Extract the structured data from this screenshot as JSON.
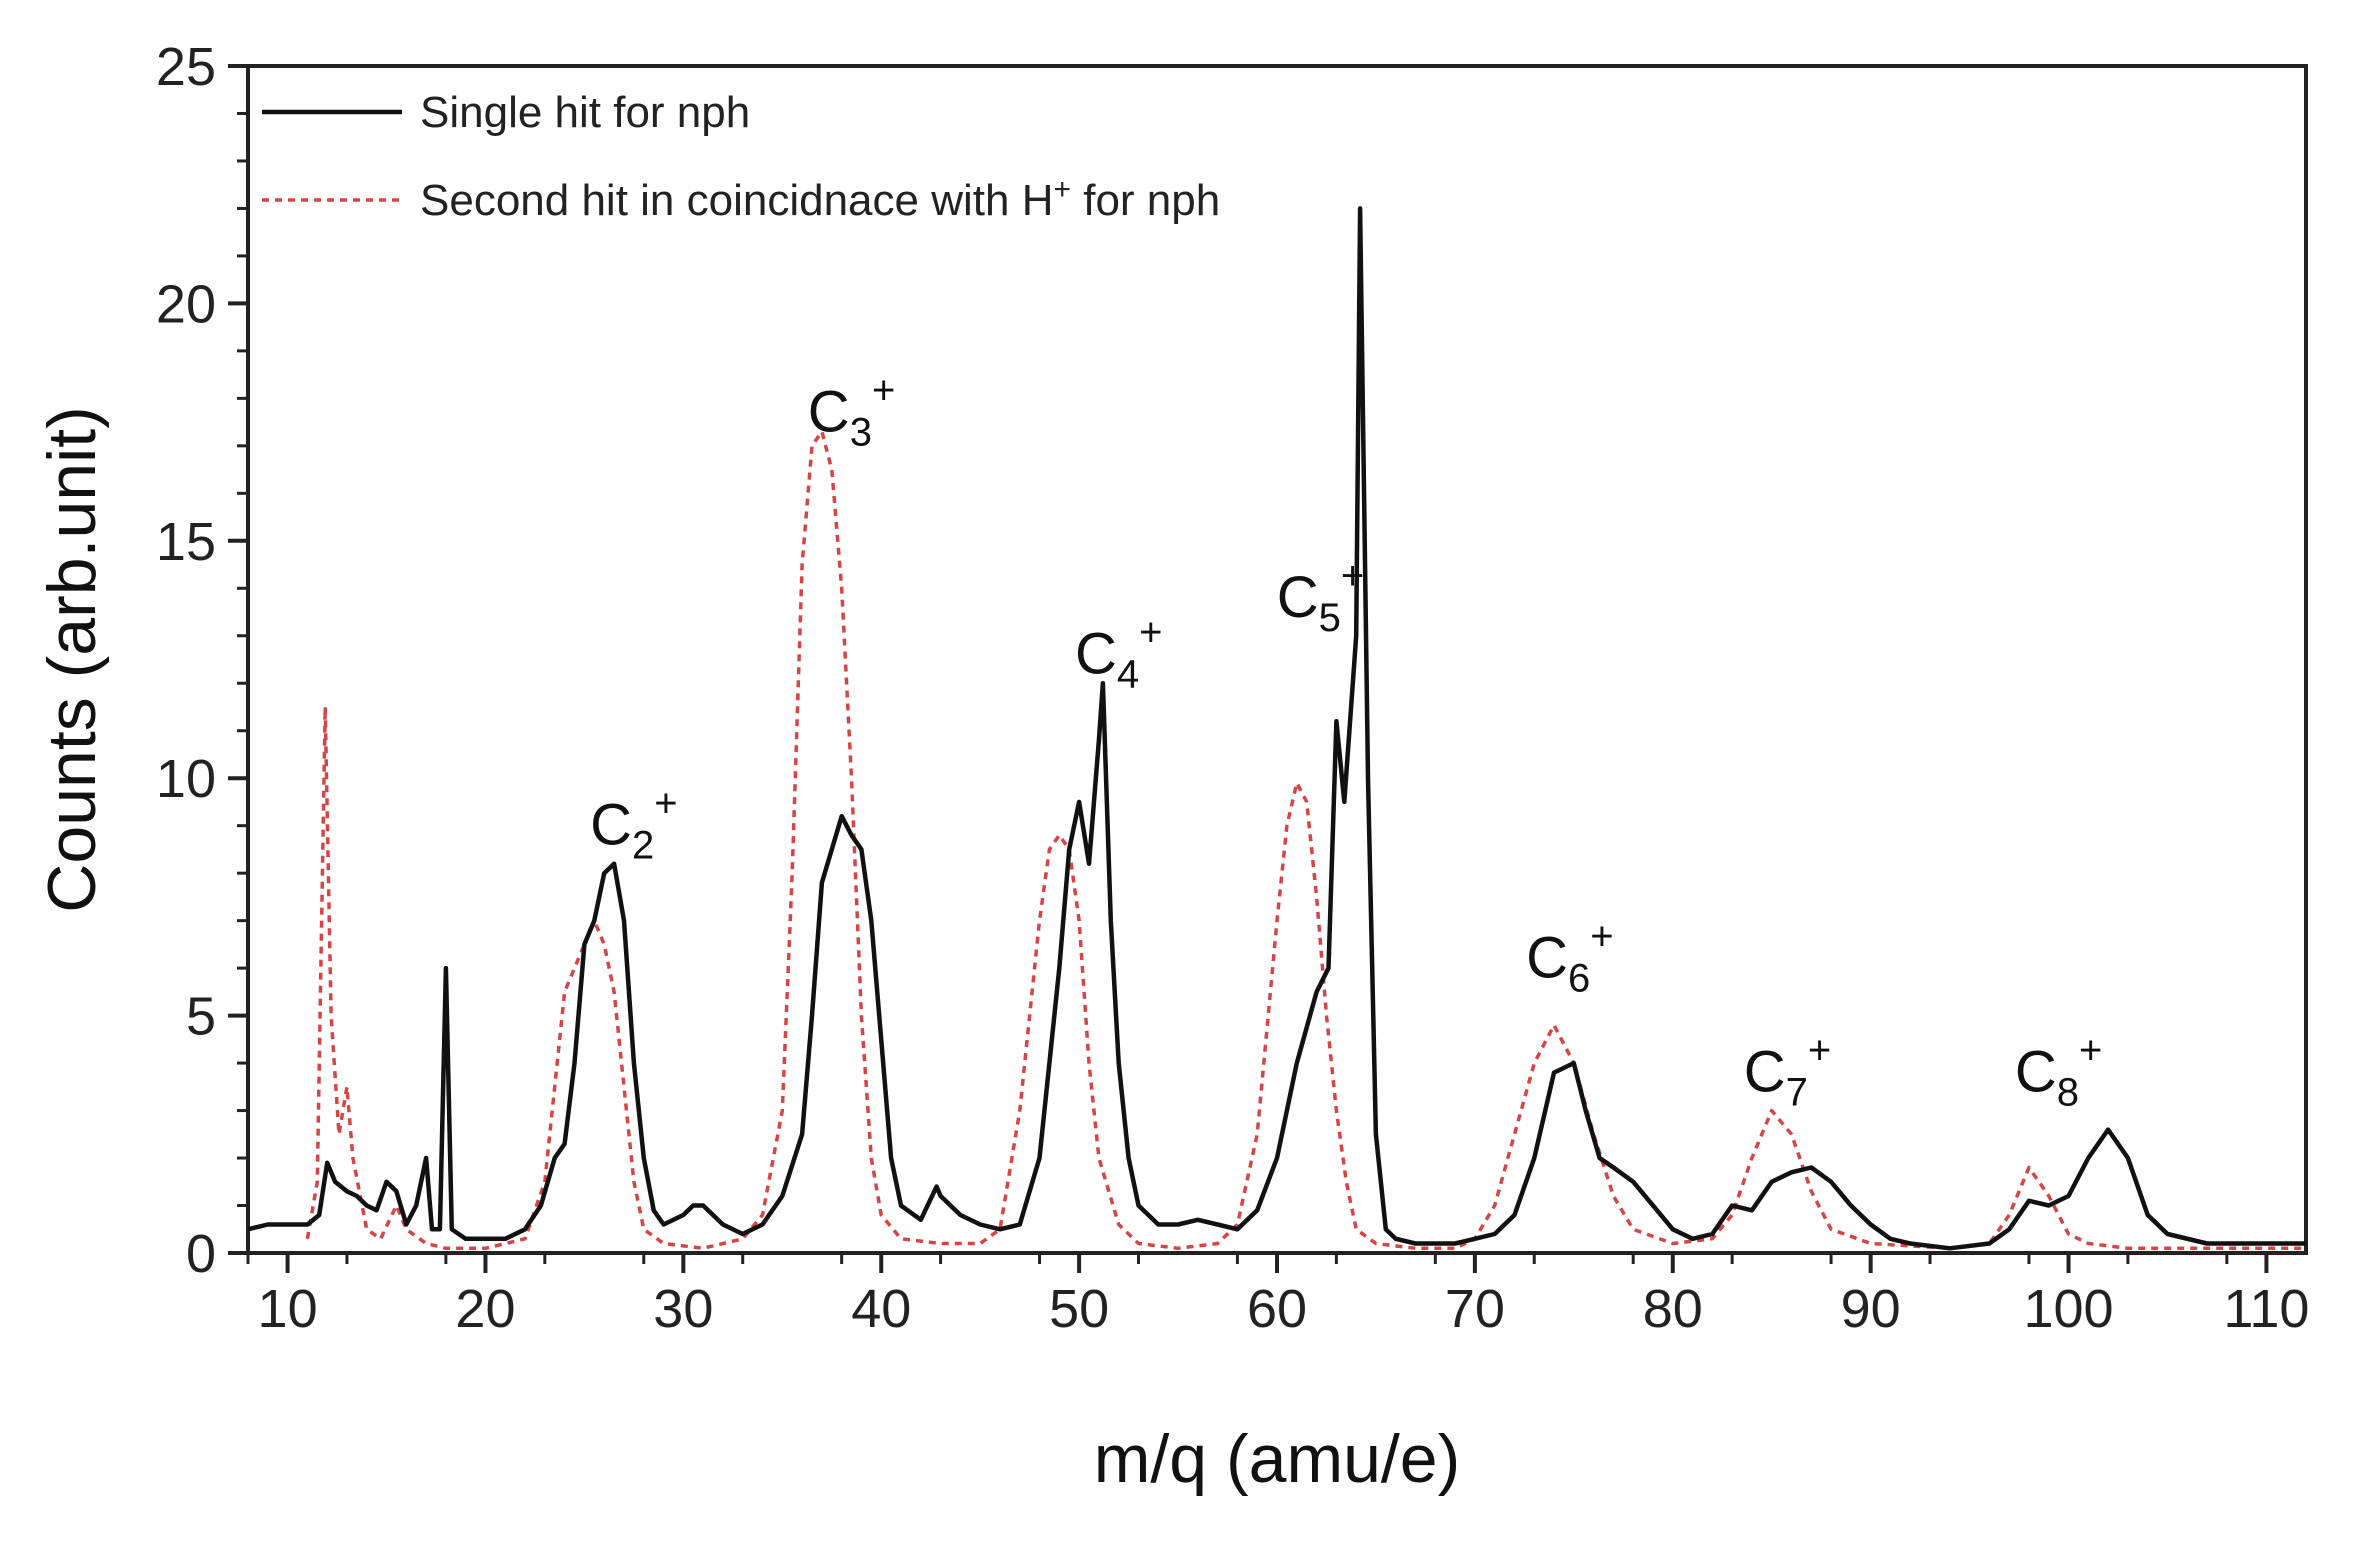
{
  "chart_data": {
    "type": "line",
    "title": "",
    "xlabel": "m/q (amu/e)",
    "ylabel": "Counts (arb.unit)",
    "xlim": [
      8,
      112
    ],
    "ylim": [
      0,
      25
    ],
    "x_ticks": [
      10,
      20,
      30,
      40,
      50,
      60,
      70,
      80,
      90,
      100,
      110
    ],
    "y_ticks": [
      0,
      5,
      10,
      15,
      20,
      25
    ],
    "grid": false,
    "legend_placement": "top-left",
    "series": [
      {
        "name": "Single hit for nph",
        "color": "#111111",
        "style": "solid",
        "points": [
          [
            8,
            0.5
          ],
          [
            9,
            0.6
          ],
          [
            10,
            0.6
          ],
          [
            11,
            0.6
          ],
          [
            11.6,
            0.8
          ],
          [
            12,
            1.9
          ],
          [
            12.4,
            1.5
          ],
          [
            13,
            1.3
          ],
          [
            13.5,
            1.2
          ],
          [
            14,
            1.0
          ],
          [
            14.5,
            0.9
          ],
          [
            15,
            1.5
          ],
          [
            15.5,
            1.3
          ],
          [
            16,
            0.6
          ],
          [
            16.5,
            1.0
          ],
          [
            17,
            2.0
          ],
          [
            17.3,
            0.5
          ],
          [
            17.7,
            0.5
          ],
          [
            18,
            6.0
          ],
          [
            18.3,
            0.5
          ],
          [
            19,
            0.3
          ],
          [
            20,
            0.3
          ],
          [
            21,
            0.3
          ],
          [
            22,
            0.5
          ],
          [
            22.8,
            1.0
          ],
          [
            23.5,
            2.0
          ],
          [
            24,
            2.3
          ],
          [
            24.5,
            4.0
          ],
          [
            25,
            6.5
          ],
          [
            25.5,
            7.0
          ],
          [
            26,
            8.0
          ],
          [
            26.5,
            8.2
          ],
          [
            27,
            7.0
          ],
          [
            27.5,
            4.0
          ],
          [
            28,
            2.0
          ],
          [
            28.5,
            0.9
          ],
          [
            29,
            0.6
          ],
          [
            30,
            0.8
          ],
          [
            30.5,
            1.0
          ],
          [
            31,
            1.0
          ],
          [
            32,
            0.6
          ],
          [
            33,
            0.4
          ],
          [
            34,
            0.6
          ],
          [
            35,
            1.2
          ],
          [
            36,
            2.5
          ],
          [
            36.5,
            5.0
          ],
          [
            37,
            7.8
          ],
          [
            37.5,
            8.5
          ],
          [
            38,
            9.2
          ],
          [
            38.5,
            8.8
          ],
          [
            39,
            8.5
          ],
          [
            39.5,
            7.0
          ],
          [
            40,
            4.5
          ],
          [
            40.5,
            2.0
          ],
          [
            41,
            1.0
          ],
          [
            42,
            0.7
          ],
          [
            42.8,
            1.4
          ],
          [
            43,
            1.2
          ],
          [
            44,
            0.8
          ],
          [
            45,
            0.6
          ],
          [
            46,
            0.5
          ],
          [
            47,
            0.6
          ],
          [
            48,
            2.0
          ],
          [
            49,
            6.0
          ],
          [
            49.5,
            8.5
          ],
          [
            50,
            9.5
          ],
          [
            50.5,
            8.2
          ],
          [
            51,
            10.8
          ],
          [
            51.2,
            12.0
          ],
          [
            51.6,
            7.0
          ],
          [
            52,
            4.0
          ],
          [
            52.5,
            2.0
          ],
          [
            53,
            1.0
          ],
          [
            54,
            0.6
          ],
          [
            55,
            0.6
          ],
          [
            56,
            0.7
          ],
          [
            57,
            0.6
          ],
          [
            58,
            0.5
          ],
          [
            59,
            0.9
          ],
          [
            60,
            2.0
          ],
          [
            61,
            4.0
          ],
          [
            62,
            5.5
          ],
          [
            62.6,
            6.0
          ],
          [
            63,
            11.2
          ],
          [
            63.4,
            9.5
          ],
          [
            64,
            13.0
          ],
          [
            64.2,
            22.0
          ],
          [
            64.6,
            10.0
          ],
          [
            65,
            2.5
          ],
          [
            65.5,
            0.5
          ],
          [
            66,
            0.3
          ],
          [
            67,
            0.2
          ],
          [
            68,
            0.2
          ],
          [
            69,
            0.2
          ],
          [
            70,
            0.3
          ],
          [
            71,
            0.4
          ],
          [
            72,
            0.8
          ],
          [
            73,
            2.0
          ],
          [
            74,
            3.8
          ],
          [
            75,
            4.0
          ],
          [
            75.6,
            3.0
          ],
          [
            76.3,
            2.0
          ],
          [
            77,
            1.8
          ],
          [
            78,
            1.5
          ],
          [
            79,
            1.0
          ],
          [
            80,
            0.5
          ],
          [
            81,
            0.3
          ],
          [
            82,
            0.4
          ],
          [
            83,
            1.0
          ],
          [
            84,
            0.9
          ],
          [
            85,
            1.5
          ],
          [
            86,
            1.7
          ],
          [
            87,
            1.8
          ],
          [
            88,
            1.5
          ],
          [
            89,
            1.0
          ],
          [
            90,
            0.6
          ],
          [
            91,
            0.3
          ],
          [
            92,
            0.2
          ],
          [
            94,
            0.1
          ],
          [
            96,
            0.2
          ],
          [
            97,
            0.5
          ],
          [
            98,
            1.1
          ],
          [
            99,
            1.0
          ],
          [
            100,
            1.2
          ],
          [
            101,
            2.0
          ],
          [
            102,
            2.6
          ],
          [
            103,
            2.0
          ],
          [
            104,
            0.8
          ],
          [
            105,
            0.4
          ],
          [
            107,
            0.2
          ],
          [
            109,
            0.2
          ],
          [
            112,
            0.2
          ]
        ]
      },
      {
        "name": "Second hit in coincidnace with H+ for nph",
        "color": "#d64545",
        "style": "dotted",
        "points": [
          [
            11,
            0.3
          ],
          [
            11.5,
            1.5
          ],
          [
            11.9,
            11.5
          ],
          [
            12.2,
            5.0
          ],
          [
            12.6,
            2.5
          ],
          [
            13,
            3.5
          ],
          [
            13.3,
            2.0
          ],
          [
            14,
            0.5
          ],
          [
            14.7,
            0.3
          ],
          [
            15.5,
            1.0
          ],
          [
            16,
            0.5
          ],
          [
            17,
            0.2
          ],
          [
            18,
            0.1
          ],
          [
            20,
            0.1
          ],
          [
            22,
            0.3
          ],
          [
            23,
            1.5
          ],
          [
            24,
            5.5
          ],
          [
            24.5,
            6.0
          ],
          [
            25,
            6.5
          ],
          [
            25.5,
            7.0
          ],
          [
            26,
            6.5
          ],
          [
            26.5,
            5.5
          ],
          [
            27,
            3.5
          ],
          [
            27.5,
            1.5
          ],
          [
            28,
            0.5
          ],
          [
            29,
            0.2
          ],
          [
            31,
            0.1
          ],
          [
            33,
            0.3
          ],
          [
            34,
            0.8
          ],
          [
            35,
            3.0
          ],
          [
            35.5,
            8.0
          ],
          [
            36,
            14.5
          ],
          [
            36.5,
            17.0
          ],
          [
            37,
            17.3
          ],
          [
            37.5,
            16.5
          ],
          [
            38,
            14.0
          ],
          [
            38.5,
            10.0
          ],
          [
            39,
            5.0
          ],
          [
            39.5,
            2.0
          ],
          [
            40,
            0.8
          ],
          [
            41,
            0.3
          ],
          [
            43,
            0.2
          ],
          [
            45,
            0.2
          ],
          [
            46,
            0.5
          ],
          [
            47,
            3.0
          ],
          [
            48,
            7.0
          ],
          [
            48.5,
            8.5
          ],
          [
            49,
            8.8
          ],
          [
            49.5,
            8.5
          ],
          [
            50,
            7.0
          ],
          [
            50.5,
            4.0
          ],
          [
            51,
            2.0
          ],
          [
            52,
            0.6
          ],
          [
            53,
            0.2
          ],
          [
            55,
            0.1
          ],
          [
            57,
            0.2
          ],
          [
            58,
            0.6
          ],
          [
            59,
            2.5
          ],
          [
            60,
            7.0
          ],
          [
            60.5,
            9.0
          ],
          [
            61,
            9.9
          ],
          [
            61.5,
            9.5
          ],
          [
            62,
            7.5
          ],
          [
            62.5,
            5.0
          ],
          [
            63,
            3.0
          ],
          [
            63.5,
            1.5
          ],
          [
            64,
            0.5
          ],
          [
            65,
            0.2
          ],
          [
            67,
            0.1
          ],
          [
            69,
            0.1
          ],
          [
            70,
            0.3
          ],
          [
            71,
            1.0
          ],
          [
            72,
            2.5
          ],
          [
            73,
            4.0
          ],
          [
            74,
            4.8
          ],
          [
            75,
            4.0
          ],
          [
            76,
            2.5
          ],
          [
            77,
            1.2
          ],
          [
            78,
            0.5
          ],
          [
            80,
            0.2
          ],
          [
            82,
            0.3
          ],
          [
            83,
            0.8
          ],
          [
            84,
            2.0
          ],
          [
            85,
            3.0
          ],
          [
            86,
            2.5
          ],
          [
            87,
            1.3
          ],
          [
            88,
            0.5
          ],
          [
            90,
            0.2
          ],
          [
            94,
            0.1
          ],
          [
            96,
            0.2
          ],
          [
            97,
            0.8
          ],
          [
            98,
            1.8
          ],
          [
            99,
            1.2
          ],
          [
            100,
            0.4
          ],
          [
            101,
            0.2
          ],
          [
            103,
            0.1
          ],
          [
            112,
            0.1
          ]
        ]
      }
    ],
    "annotations": [
      {
        "base": "C",
        "sub": "2",
        "sup": "+",
        "x": 27.5,
        "y": 8.6
      },
      {
        "base": "C",
        "sub": "3",
        "sup": "+",
        "x": 38.5,
        "y": 17.3
      },
      {
        "base": "C",
        "sub": "4",
        "sup": "+",
        "x": 52.0,
        "y": 12.2
      },
      {
        "base": "C",
        "sub": "5",
        "sup": "+",
        "x": 62.2,
        "y": 13.4
      },
      {
        "base": "C",
        "sub": "6",
        "sup": "+",
        "x": 74.8,
        "y": 5.8
      },
      {
        "base": "C",
        "sub": "7",
        "sup": "+",
        "x": 85.8,
        "y": 3.4
      },
      {
        "base": "C",
        "sub": "8",
        "sup": "+",
        "x": 99.5,
        "y": 3.4
      }
    ]
  }
}
